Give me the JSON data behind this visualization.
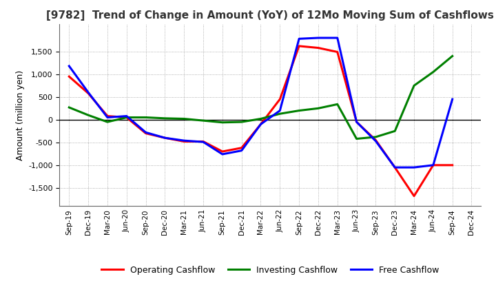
{
  "title": "[9782]  Trend of Change in Amount (YoY) of 12Mo Moving Sum of Cashflows",
  "ylabel": "Amount (million yen)",
  "x_labels": [
    "Sep-19",
    "Dec-19",
    "Mar-20",
    "Jun-20",
    "Sep-20",
    "Dec-20",
    "Mar-21",
    "Jun-21",
    "Sep-21",
    "Dec-21",
    "Mar-22",
    "Jun-22",
    "Sep-22",
    "Dec-22",
    "Mar-23",
    "Jun-23",
    "Sep-23",
    "Dec-23",
    "Mar-24",
    "Jun-24",
    "Sep-24",
    "Dec-24"
  ],
  "operating": [
    950,
    580,
    80,
    50,
    -300,
    -400,
    -480,
    -480,
    -700,
    -620,
    -100,
    450,
    1620,
    1580,
    1490,
    -50,
    -450,
    -1050,
    -1680,
    -1000,
    -1000,
    null
  ],
  "investing": [
    270,
    100,
    -50,
    50,
    50,
    30,
    20,
    -20,
    -60,
    -50,
    20,
    130,
    200,
    250,
    340,
    -420,
    -380,
    -250,
    750,
    1050,
    1400,
    null
  ],
  "free": [
    1180,
    600,
    50,
    80,
    -280,
    -400,
    -460,
    -490,
    -760,
    -680,
    -100,
    200,
    1780,
    1800,
    1800,
    -50,
    -470,
    -1050,
    -1050,
    -1000,
    450,
    null
  ],
  "ylim": [
    -1900,
    2100
  ],
  "yticks": [
    -1500,
    -1000,
    -500,
    0,
    500,
    1000,
    1500
  ],
  "operating_color": "#FF0000",
  "investing_color": "#008000",
  "free_color": "#0000FF",
  "bg_color": "#FFFFFF",
  "plot_bg": "#FFFFFF",
  "grid_color": "#999999",
  "linewidth": 2.2
}
